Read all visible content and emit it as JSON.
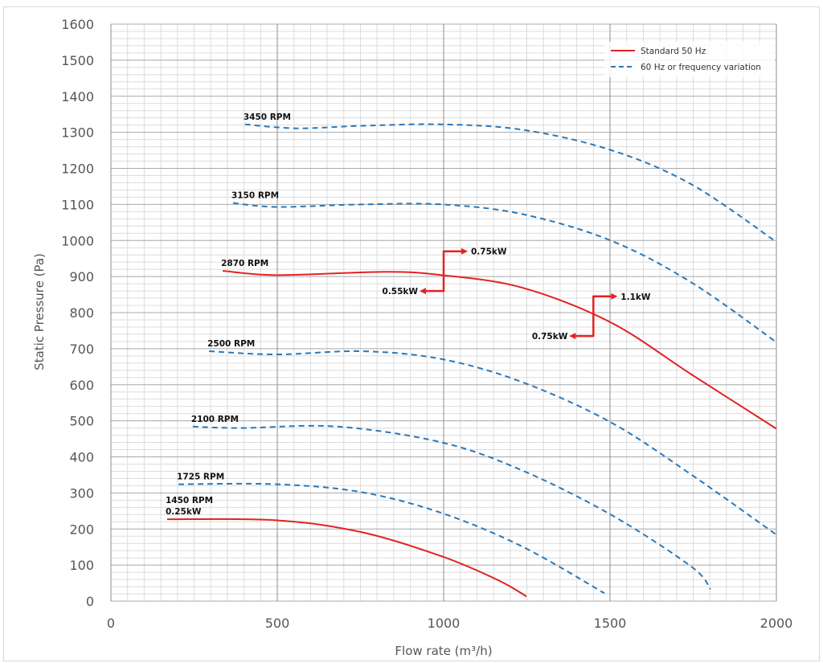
{
  "chart_data": {
    "type": "line",
    "xlabel": "Flow rate (m³/h)",
    "ylabel": "Static Pressure (Pa)",
    "xlim": [
      0,
      2000
    ],
    "ylim": [
      0,
      1600
    ],
    "xticks": [
      "0",
      "500",
      "1000",
      "1500",
      "2000"
    ],
    "yticks": [
      "0",
      "100",
      "200",
      "300",
      "400",
      "500",
      "600",
      "700",
      "800",
      "900",
      "1000",
      "1100",
      "1200",
      "1300",
      "1400",
      "1500",
      "1600"
    ],
    "grid": true,
    "legend_position": "top-right",
    "legend": [
      {
        "label": "Standard 50 Hz",
        "style": "solid",
        "color": "#e32222"
      },
      {
        "label": "60 Hz or frequency variation",
        "style": "dashed",
        "color": "#2a78b8"
      }
    ],
    "series": [
      {
        "name": "3450 RPM",
        "style": "dashed",
        "x": [
          403,
          560,
          754,
          995,
          1237,
          1502,
          1744,
          2000
        ],
        "y": [
          1322,
          1311,
          1318,
          1322,
          1307,
          1251,
          1156,
          996
        ]
      },
      {
        "name": "3150 RPM",
        "style": "dashed",
        "x": [
          367,
          500,
          754,
          995,
          1237,
          1502,
          1744,
          2000
        ],
        "y": [
          1104,
          1093,
          1100,
          1100,
          1073,
          1000,
          884,
          718
        ]
      },
      {
        "name": "2870 RPM",
        "style": "solid",
        "x": [
          336,
          500,
          826,
          995,
          1237,
          1502,
          1744,
          2000
        ],
        "y": [
          916,
          904,
          913,
          904,
          869,
          773,
          629,
          478
        ]
      },
      {
        "name": "2500 RPM",
        "style": "dashed",
        "x": [
          295,
          500,
          754,
          995,
          1237,
          1502,
          1744,
          2000
        ],
        "y": [
          693,
          684,
          693,
          671,
          607,
          496,
          351,
          184
        ]
      },
      {
        "name": "2100 RPM",
        "style": "dashed",
        "x": [
          246,
          391,
          681,
          995,
          1237,
          1502,
          1744,
          1802
        ],
        "y": [
          484,
          480,
          484,
          440,
          362,
          240,
          96,
          33
        ]
      },
      {
        "name": "1725 RPM",
        "style": "dashed",
        "x": [
          203,
          500,
          754,
          995,
          1237,
          1483
        ],
        "y": [
          324,
          324,
          302,
          244,
          151,
          22
        ]
      },
      {
        "name": "1450 RPM",
        "sublabel": "0.25kW",
        "style": "solid",
        "x": [
          169,
          500,
          754,
          995,
          1164,
          1249
        ],
        "y": [
          227,
          224,
          191,
          124,
          58,
          13
        ]
      }
    ],
    "annotations": [
      {
        "label": "0.55kW",
        "direction": "left",
        "x": 1000,
        "y": 860
      },
      {
        "label": "0.75kW",
        "direction": "right",
        "x": 1000,
        "y": 970
      },
      {
        "label": "0.75kW",
        "direction": "left",
        "x": 1450,
        "y": 735
      },
      {
        "label": "1.1kW",
        "direction": "right",
        "x": 1450,
        "y": 845
      }
    ]
  }
}
